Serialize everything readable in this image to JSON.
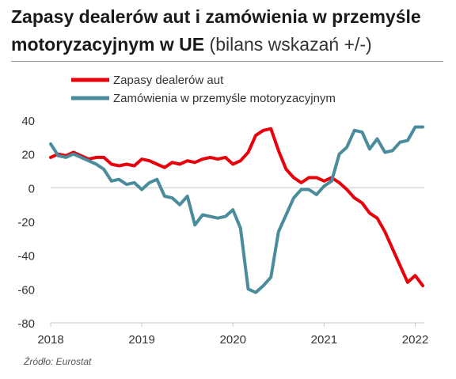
{
  "header": {
    "title_bold": "Zapasy dealerów aut i zamówienia w przemyśle motoryzacyjnym w UE",
    "title_light": "(bilans wskazań +/-)"
  },
  "source": "Źródło: Eurostat",
  "colors": {
    "series1": "#e8000b",
    "series2": "#4a8c9c",
    "axis": "#c8c8c8"
  },
  "chart_data": {
    "type": "line",
    "xlim": [
      2018.0,
      2022.1
    ],
    "ylim": [
      -80,
      40
    ],
    "x_ticks": [
      2018,
      2019,
      2020,
      2021,
      2022
    ],
    "y_ticks": [
      40,
      20,
      0,
      -20,
      -40,
      -60,
      -80
    ],
    "legend": "top-left",
    "grid": false,
    "series": [
      {
        "name": "Zapasy dealerów aut",
        "color": "#e8000b",
        "x": [
          2018.0,
          2018.083,
          2018.167,
          2018.25,
          2018.333,
          2018.417,
          2018.5,
          2018.583,
          2018.667,
          2018.75,
          2018.833,
          2018.917,
          2019.0,
          2019.083,
          2019.167,
          2019.25,
          2019.333,
          2019.417,
          2019.5,
          2019.583,
          2019.667,
          2019.75,
          2019.833,
          2019.917,
          2020.0,
          2020.083,
          2020.167,
          2020.25,
          2020.333,
          2020.417,
          2020.5,
          2020.583,
          2020.667,
          2020.75,
          2020.833,
          2020.917,
          2021.0,
          2021.083,
          2021.167,
          2021.25,
          2021.333,
          2021.417,
          2021.5,
          2021.583,
          2021.667,
          2021.75,
          2021.833,
          2021.917,
          2022.0,
          2022.083
        ],
        "values": [
          18,
          20,
          19,
          21,
          19,
          17,
          18,
          18,
          14,
          13,
          14,
          13,
          17,
          16,
          14,
          12,
          15,
          14,
          16,
          15,
          17,
          18,
          17,
          18,
          14,
          16,
          21,
          31,
          34,
          35,
          22,
          11,
          6,
          3,
          6,
          6,
          4,
          6,
          3,
          -1,
          -6,
          -9,
          -15,
          -18,
          -26,
          -36,
          -46,
          -56,
          -52,
          -58
        ]
      },
      {
        "name": "Zamówienia w przemyśle motoryzacyjnym",
        "color": "#4a8c9c",
        "x": [
          2018.0,
          2018.083,
          2018.167,
          2018.25,
          2018.333,
          2018.417,
          2018.5,
          2018.583,
          2018.667,
          2018.75,
          2018.833,
          2018.917,
          2019.0,
          2019.083,
          2019.167,
          2019.25,
          2019.333,
          2019.417,
          2019.5,
          2019.583,
          2019.667,
          2019.75,
          2019.833,
          2019.917,
          2020.0,
          2020.083,
          2020.167,
          2020.25,
          2020.333,
          2020.417,
          2020.5,
          2020.583,
          2020.667,
          2020.75,
          2020.833,
          2020.917,
          2021.0,
          2021.083,
          2021.167,
          2021.25,
          2021.333,
          2021.417,
          2021.5,
          2021.583,
          2021.667,
          2021.75,
          2021.833,
          2021.917,
          2022.0,
          2022.083
        ],
        "values": [
          26,
          19,
          18,
          20,
          18,
          16,
          14,
          11,
          4,
          5,
          2,
          3,
          -1,
          3,
          5,
          -5,
          -6,
          -10,
          -5,
          -22,
          -16,
          -17,
          -18,
          -17,
          -13,
          -24,
          -60,
          -62,
          -58,
          -53,
          -26,
          -16,
          -6,
          -1,
          -1,
          -4,
          1,
          4,
          20,
          24,
          34,
          33,
          23,
          29,
          21,
          22,
          27,
          28,
          36,
          36
        ]
      }
    ]
  }
}
